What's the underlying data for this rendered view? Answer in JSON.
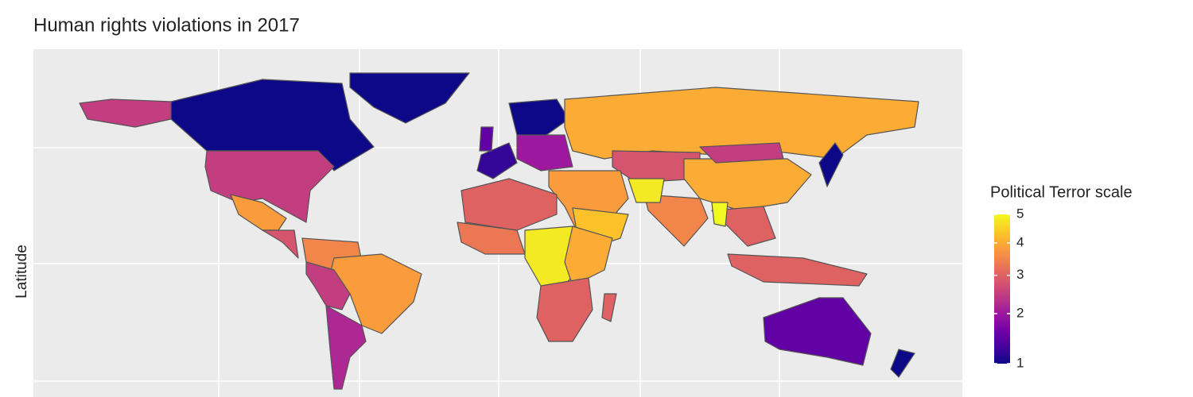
{
  "title": "Human rights violations in 2017",
  "y_label": "Latitude",
  "legend": {
    "title": "Political Terror scale",
    "lim": [
      1,
      5
    ],
    "ticks": [
      1,
      2,
      3,
      4,
      5
    ],
    "scale": "sqrt",
    "palette": [
      "#0d0887",
      "#46039f",
      "#7201a8",
      "#9c179e",
      "#bd3786",
      "#d8576b",
      "#ed7953",
      "#fb9f3a",
      "#fdca26",
      "#f0f921"
    ]
  },
  "regions": {
    "values": [
      1,
      1,
      2.5,
      2.5,
      3.8,
      2.8,
      3.5,
      3.8,
      2.5,
      2.2,
      1.2,
      1,
      2,
      4,
      2.8,
      3.8,
      4.3,
      3,
      3.3,
      4.8,
      4,
      3,
      3,
      3.5,
      4.8,
      4,
      2.5,
      3,
      3,
      1,
      1.5,
      1,
      1.5,
      5
    ]
  }
}
